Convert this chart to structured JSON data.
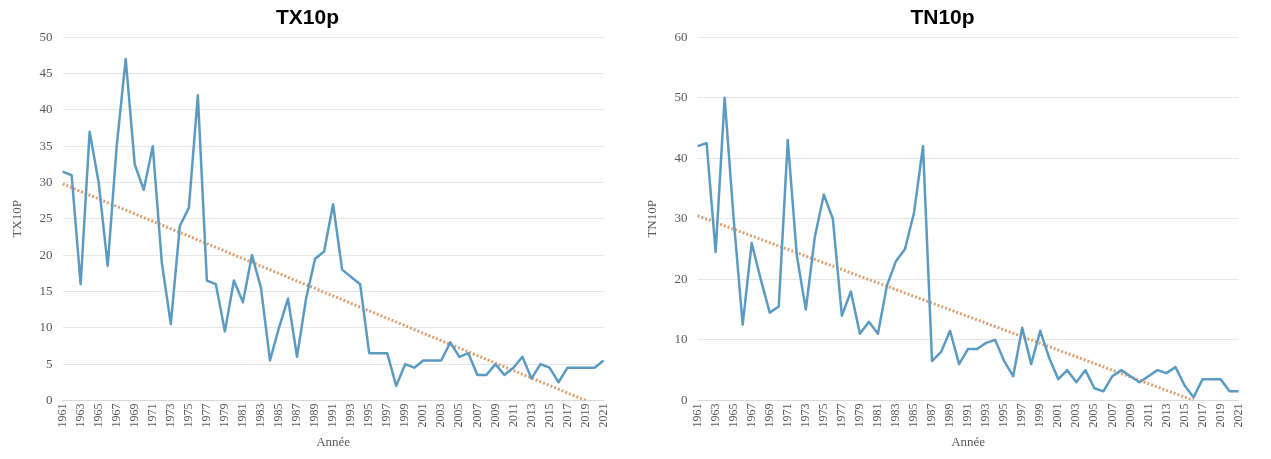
{
  "chart_data": [
    {
      "type": "line",
      "title": "TX10p",
      "xlabel": "Année",
      "ylabel": "TX10P",
      "categories": [
        "1961",
        null,
        "1963",
        null,
        "1965",
        null,
        "1967",
        null,
        "1969",
        null,
        "1971",
        null,
        "1973",
        null,
        "1975",
        null,
        "1977",
        null,
        "1979",
        null,
        "1981",
        null,
        "1983",
        null,
        "1985",
        null,
        "1987",
        null,
        "1989",
        null,
        "1991",
        null,
        "1993",
        null,
        "1995",
        null,
        "1997",
        null,
        "1999",
        null,
        "2001",
        null,
        "2003",
        null,
        "2005",
        null,
        "2007",
        null,
        "2009",
        null,
        "2011",
        null,
        "2013",
        null,
        "2015",
        null,
        "2017",
        null,
        "2019",
        null,
        "2021"
      ],
      "series": [
        {
          "color": "#5b9bc2",
          "values": [
            31.5,
            31,
            16,
            37,
            30,
            18.5,
            35,
            47,
            32.5,
            29,
            35,
            19,
            10.5,
            24,
            26.5,
            42,
            16.5,
            16,
            9.5,
            16.5,
            13.5,
            20,
            15.5,
            5.5,
            10,
            14,
            6,
            14,
            19.5,
            20.5,
            27,
            18,
            17,
            16,
            6.5,
            6.5,
            6.5,
            2,
            5,
            4.5,
            5.5,
            5.5,
            5.5,
            8,
            6,
            6.5,
            3.5,
            3.5,
            5,
            3.5,
            4.5,
            6,
            3,
            5,
            4.5,
            2.5,
            4.5,
            4.5,
            4.5,
            4.5,
            5.5
          ]
        },
        {
          "type": "line",
          "color": "#e0a070",
          "line_style": "dotted",
          "values": [
            29.8,
            null,
            null,
            null,
            null,
            null,
            null,
            null,
            null,
            null,
            null,
            null,
            null,
            null,
            null,
            null,
            null,
            null,
            null,
            null,
            null,
            null,
            null,
            null,
            null,
            null,
            null,
            null,
            null,
            null,
            null,
            null,
            null,
            null,
            null,
            null,
            null,
            null,
            null,
            null,
            null,
            null,
            null,
            null,
            null,
            null,
            null,
            null,
            null,
            null,
            null,
            null,
            null,
            null,
            null,
            null,
            null,
            null,
            0,
            null,
            null
          ]
        }
      ],
      "ylim": [
        0,
        50
      ],
      "yticks": [
        0,
        5,
        10,
        15,
        20,
        25,
        30,
        35,
        40,
        45,
        50
      ],
      "grid": "y",
      "legend": false
    },
    {
      "type": "line",
      "title": "TN10p",
      "xlabel": "Année",
      "ylabel": "TN10P",
      "categories": [
        "1961",
        null,
        "1963",
        null,
        "1965",
        null,
        "1967",
        null,
        "1969",
        null,
        "1971",
        null,
        "1973",
        null,
        "1975",
        null,
        "1977",
        null,
        "1979",
        null,
        "1981",
        null,
        "1983",
        null,
        "1985",
        null,
        "1987",
        null,
        "1989",
        null,
        "1991",
        null,
        "1993",
        null,
        "1995",
        null,
        "1997",
        null,
        "1999",
        null,
        "2001",
        null,
        "2003",
        null,
        "2005",
        null,
        "2007",
        null,
        "2009",
        null,
        "2011",
        null,
        "2013",
        null,
        "2015",
        null,
        "2017",
        null,
        "2019",
        null,
        "2021"
      ],
      "series": [
        {
          "color": "#5b9bc2",
          "values": [
            42,
            42.5,
            24.5,
            50,
            30,
            12.5,
            26,
            20,
            14.5,
            15.5,
            43,
            24,
            15,
            27,
            34,
            30,
            14,
            18,
            11,
            13,
            11,
            19,
            23,
            25,
            31,
            42,
            6.5,
            8,
            11.5,
            6,
            8.5,
            8.5,
            9.5,
            10,
            6.5,
            4,
            12,
            6,
            11.5,
            7,
            3.5,
            5,
            3,
            5,
            2,
            1.5,
            4,
            5,
            4,
            3,
            4,
            5,
            4.5,
            5.5,
            2.5,
            0.5,
            3.5,
            3.5,
            3.5,
            1.5,
            1.5
          ]
        },
        {
          "type": "line",
          "color": "#e0a070",
          "line_style": "dotted",
          "values": [
            30.5,
            null,
            null,
            null,
            null,
            null,
            null,
            null,
            null,
            null,
            null,
            null,
            null,
            null,
            null,
            null,
            null,
            null,
            null,
            null,
            null,
            null,
            null,
            null,
            null,
            null,
            null,
            null,
            null,
            null,
            null,
            null,
            null,
            null,
            null,
            null,
            null,
            null,
            null,
            null,
            null,
            null,
            null,
            null,
            null,
            null,
            null,
            null,
            null,
            null,
            null,
            null,
            null,
            null,
            null,
            0,
            null,
            null,
            null,
            null,
            null
          ]
        }
      ],
      "ylim": [
        0,
        60
      ],
      "yticks": [
        0,
        10,
        20,
        30,
        40,
        50,
        60
      ],
      "grid": "y",
      "legend": false
    }
  ]
}
